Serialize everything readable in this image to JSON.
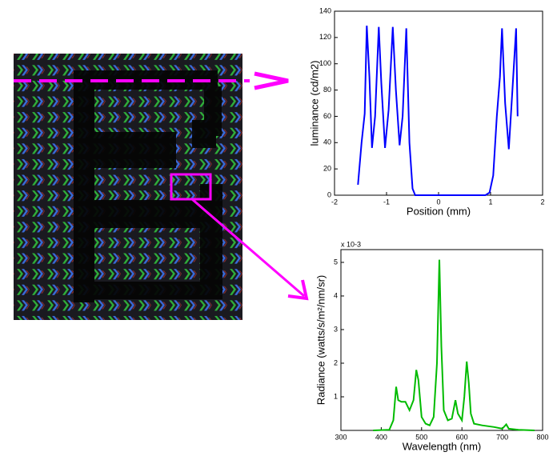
{
  "chart_data": [
    {
      "type": "line",
      "xlabel": "Position (mm)",
      "ylabel": "luminance (cd/m2)",
      "xlim": [
        -2,
        2
      ],
      "xticks": [
        -2,
        -1,
        0,
        1,
        2
      ],
      "ylim": [
        0,
        140
      ],
      "yticks": [
        0,
        20,
        40,
        60,
        80,
        100,
        120,
        140
      ],
      "series": [
        {
          "color": "#0000ff",
          "x": [
            -1.55,
            -1.48,
            -1.42,
            -1.38,
            -1.33,
            -1.28,
            -1.22,
            -1.15,
            -1.1,
            -1.03,
            -0.96,
            -0.88,
            -0.82,
            -0.75,
            -0.69,
            -0.62,
            -0.56,
            -0.5,
            -0.45,
            -0.3,
            0,
            0.5,
            0.9,
            0.98,
            1.05,
            1.12,
            1.18,
            1.22,
            1.28,
            1.35,
            1.42,
            1.49,
            1.52
          ],
          "values": [
            8,
            40,
            62,
            129,
            90,
            36,
            60,
            128,
            85,
            36,
            65,
            128,
            80,
            38,
            60,
            127,
            40,
            5,
            0,
            0,
            0,
            0,
            0,
            2,
            15,
            60,
            90,
            127,
            70,
            35,
            80,
            127,
            60
          ]
        }
      ]
    },
    {
      "type": "line",
      "xlabel": "Wavelength (nm)",
      "ylabel": "Radiance (watts/s/m²/nm/sr)",
      "exponent_label": "x 10-3",
      "xlim": [
        300,
        800
      ],
      "xticks": [
        300,
        400,
        500,
        600,
        700,
        800
      ],
      "ylim": [
        0,
        5.38
      ],
      "yticks": [
        1,
        2,
        3,
        4,
        5
      ],
      "series": [
        {
          "color": "#00bb00",
          "x": [
            380,
            420,
            430,
            437,
            442,
            450,
            460,
            470,
            480,
            487,
            492,
            500,
            510,
            520,
            530,
            538,
            544,
            549,
            555,
            565,
            575,
            584,
            590,
            600,
            606,
            612,
            617,
            622,
            630,
            650,
            680,
            700,
            710,
            716,
            740,
            780
          ],
          "values": [
            0,
            0.02,
            0.3,
            1.3,
            0.9,
            0.85,
            0.85,
            0.6,
            0.9,
            1.8,
            1.5,
            0.4,
            0.2,
            0.15,
            0.4,
            2.0,
            5.08,
            2.5,
            0.6,
            0.3,
            0.35,
            0.9,
            0.5,
            0.3,
            1.0,
            2.05,
            1.4,
            0.5,
            0.2,
            0.15,
            0.1,
            0.05,
            0.18,
            0.05,
            0.02,
            0
          ]
        }
      ]
    }
  ]
}
